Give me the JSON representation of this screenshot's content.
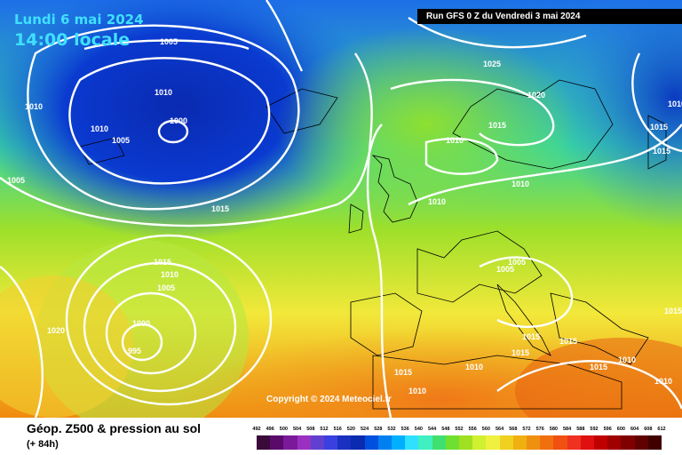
{
  "header": {
    "date": "Lundi 6 mai 2024",
    "time": "14:00 locale",
    "run": "Run GFS 0 Z du Vendredi 3 mai 2024"
  },
  "copyright": "Copyright © 2024 Meteociel.fr",
  "footer": {
    "title": "Géop. Z500 & pression au sol",
    "subtitle": "(+ 84h)"
  },
  "isobar_labels": [
    {
      "id": "i1",
      "text": "1005"
    },
    {
      "id": "i2",
      "text": "1025"
    },
    {
      "id": "i3",
      "text": "1010"
    },
    {
      "id": "i4",
      "text": "1010"
    },
    {
      "id": "i5",
      "text": "1010"
    },
    {
      "id": "i6",
      "text": "1000"
    },
    {
      "id": "i7",
      "text": "1005"
    },
    {
      "id": "i8",
      "text": "1005"
    },
    {
      "id": "i9",
      "text": "1015"
    },
    {
      "id": "i10",
      "text": "1020"
    },
    {
      "id": "i11",
      "text": "1015"
    },
    {
      "id": "i12",
      "text": "1010"
    },
    {
      "id": "i13",
      "text": "1010"
    },
    {
      "id": "i14",
      "text": "1010"
    },
    {
      "id": "i15",
      "text": "1015"
    },
    {
      "id": "i16",
      "text": "1015"
    },
    {
      "id": "i17",
      "text": "1015"
    },
    {
      "id": "i18",
      "text": "1010"
    },
    {
      "id": "i19",
      "text": "1005"
    },
    {
      "id": "i20",
      "text": "1005"
    },
    {
      "id": "i21",
      "text": "1005"
    },
    {
      "id": "i22",
      "text": "1020"
    },
    {
      "id": "i23",
      "text": "1000"
    },
    {
      "id": "i24",
      "text": "995"
    },
    {
      "id": "i25",
      "text": "1015"
    },
    {
      "id": "i26",
      "text": "1015"
    },
    {
      "id": "i27",
      "text": "1015"
    },
    {
      "id": "i28",
      "text": "1010"
    },
    {
      "id": "i29",
      "text": "1015"
    },
    {
      "id": "i30",
      "text": "1010"
    },
    {
      "id": "i31",
      "text": "1015"
    },
    {
      "id": "i32",
      "text": "1010"
    },
    {
      "id": "i33",
      "text": "1010"
    },
    {
      "id": "i34",
      "text": "1015"
    },
    {
      "id": "i35",
      "text": "1010"
    }
  ],
  "legend": {
    "ticks": [
      "492",
      "496",
      "500",
      "504",
      "508",
      "512",
      "516",
      "520",
      "524",
      "528",
      "532",
      "536",
      "540",
      "544",
      "548",
      "552",
      "556",
      "560",
      "564",
      "568",
      "572",
      "576",
      "580",
      "584",
      "588",
      "592",
      "596",
      "600",
      "604",
      "608",
      "612"
    ],
    "colors": [
      "#3a0a3a",
      "#5a0a6a",
      "#7a1a9a",
      "#9a30c0",
      "#6040d0",
      "#3a40e0",
      "#1a30c0",
      "#0a2ab0",
      "#0050e0",
      "#0080f0",
      "#00b0ff",
      "#30e0ff",
      "#40f0c0",
      "#40e070",
      "#70e030",
      "#a0e020",
      "#d0f030",
      "#f0f040",
      "#f0d020",
      "#f0b010",
      "#f09010",
      "#f07010",
      "#f05010",
      "#f03020",
      "#e01010",
      "#c00000",
      "#a00000",
      "#800000",
      "#600000",
      "#400000"
    ]
  }
}
